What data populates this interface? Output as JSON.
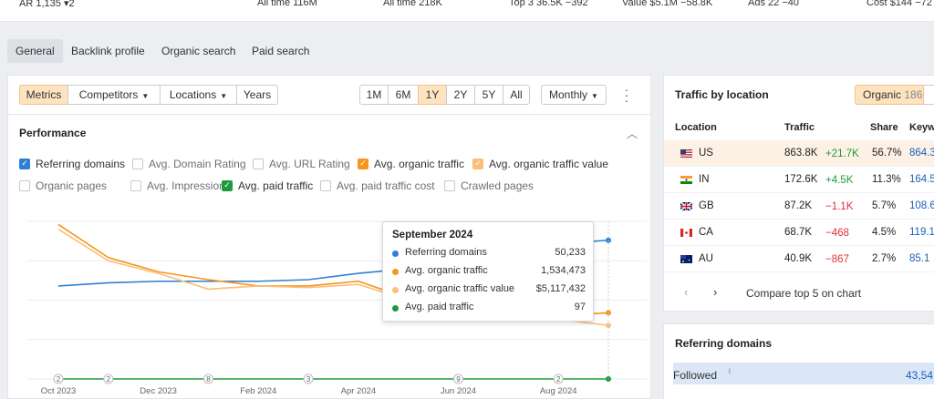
{
  "topbar": {
    "ar_label": "AR",
    "ar_value": "1,135",
    "ar_delta": "▾2",
    "alltime1": "All time 116M",
    "alltime2": "All time 218K",
    "top3_label": "Top 3",
    "top3_value": "36.5K",
    "top3_delta": "−392",
    "value_label": "Value",
    "value_value": "$5.1M",
    "value_delta": "−58.8K",
    "ads_label": "Ads",
    "ads_value": "22",
    "ads_delta": "−40",
    "cost_label": "Cost",
    "cost_value": "$144",
    "cost_delta": "−72"
  },
  "navtabs": [
    "General",
    "Backlink profile",
    "Organic search",
    "Paid search"
  ],
  "toolbar": {
    "metrics": "Metrics",
    "competitors": "Competitors",
    "locations": "Locations",
    "years": "Years",
    "ranges": [
      "1M",
      "6M",
      "1Y",
      "2Y",
      "5Y",
      "All"
    ],
    "selected_range": "1Y",
    "interval": "Monthly"
  },
  "performance": {
    "title": "Performance",
    "checkboxes": [
      {
        "label": "Referring domains",
        "checked": true,
        "color": "#2f7fd3"
      },
      {
        "label": "Avg. Domain Rating",
        "checked": false
      },
      {
        "label": "Avg. URL Rating",
        "checked": false
      },
      {
        "label": "Avg. organic traffic",
        "checked": true,
        "color": "#f7941d"
      },
      {
        "label": "Avg. organic traffic value",
        "checked": true,
        "color": "#fbbf7a"
      },
      {
        "label": "Organic pages",
        "checked": false
      },
      {
        "label": "Avg. Impressions",
        "checked": false
      },
      {
        "label": "Avg. paid traffic",
        "checked": true,
        "color": "#1e9a3c"
      },
      {
        "label": "Avg. paid traffic cost",
        "checked": false
      },
      {
        "label": "Crawled pages",
        "checked": false
      }
    ]
  },
  "chart_data": {
    "type": "line",
    "x_ticks": [
      "Oct 2023",
      "Dec 2023",
      "Feb 2024",
      "Apr 2024",
      "Jun 2024",
      "Aug 2024"
    ],
    "x": [
      "Oct 2023",
      "Nov 2023",
      "Dec 2023",
      "Jan 2024",
      "Feb 2024",
      "Mar 2024",
      "Apr 2024",
      "May 2024",
      "Jun 2024",
      "Jul 2024",
      "Aug 2024",
      "Sep 2024"
    ],
    "series": [
      {
        "name": "Referring domains",
        "color": "#2f7fd3",
        "values": [
          0.59,
          0.61,
          0.62,
          0.62,
          0.62,
          0.63,
          0.67,
          0.7,
          0.74,
          0.8,
          0.86,
          0.88
        ]
      },
      {
        "name": "Avg. organic traffic",
        "color": "#f7941d",
        "values": [
          0.98,
          0.77,
          0.68,
          0.63,
          0.59,
          0.59,
          0.62,
          0.51,
          0.48,
          0.43,
          0.4,
          0.42
        ]
      },
      {
        "name": "Avg. organic traffic value",
        "color": "#fbbf7a",
        "values": [
          0.95,
          0.75,
          0.67,
          0.57,
          0.59,
          0.58,
          0.6,
          0.5,
          0.47,
          0.42,
          0.38,
          0.34
        ]
      },
      {
        "name": "Avg. paid traffic",
        "color": "#1e9a3c",
        "values": [
          0,
          0,
          0,
          0,
          0,
          0,
          0,
          0,
          0,
          0,
          0,
          0
        ]
      }
    ],
    "markers": [
      {
        "label": "2",
        "x_index": 0
      },
      {
        "label": "2",
        "x_index": 1
      },
      {
        "label": "8",
        "x_index": 3
      },
      {
        "label": "3",
        "x_index": 5
      },
      {
        "label": "9",
        "x_index": 8
      },
      {
        "label": "2",
        "x_index": 10
      }
    ],
    "ylim": [
      0,
      1
    ],
    "grid": true,
    "legend": "none"
  },
  "tooltip": {
    "title": "September 2024",
    "rows": [
      {
        "label": "Referring domains",
        "value": "50,233",
        "color": "#2f7fd3"
      },
      {
        "label": "Avg. organic traffic",
        "value": "1,534,473",
        "color": "#f7941d"
      },
      {
        "label": "Avg. organic traffic value",
        "value": "$5,117,432",
        "color": "#fbbf7a"
      },
      {
        "label": "Avg. paid traffic",
        "value": "97",
        "color": "#1e9a3c"
      }
    ]
  },
  "locations": {
    "title": "Traffic by location",
    "tab_organic": "Organic",
    "tab_organic_count": "186",
    "headers": [
      "Location",
      "Traffic",
      "Share",
      "Keyw"
    ],
    "rows": [
      {
        "code": "US",
        "traffic": "863.8K",
        "delta": "+21.7K",
        "delta_dir": "up",
        "share": "56.7%",
        "kw": "864.3"
      },
      {
        "code": "IN",
        "traffic": "172.6K",
        "delta": "+4.5K",
        "delta_dir": "up",
        "share": "11.3%",
        "kw": "164.5"
      },
      {
        "code": "GB",
        "traffic": "87.2K",
        "delta": "−1.1K",
        "delta_dir": "down",
        "share": "5.7%",
        "kw": "108.6"
      },
      {
        "code": "CA",
        "traffic": "68.7K",
        "delta": "−468",
        "delta_dir": "down",
        "share": "4.5%",
        "kw": "119.1"
      },
      {
        "code": "AU",
        "traffic": "40.9K",
        "delta": "−867",
        "delta_dir": "down",
        "share": "2.7%",
        "kw": "85.1"
      }
    ],
    "prev": "‹",
    "next": "›",
    "compare": "Compare top 5 on chart"
  },
  "refdomains": {
    "title": "Referring domains",
    "followed_label": "Followed",
    "info": "i",
    "followed_value": "43,54"
  }
}
